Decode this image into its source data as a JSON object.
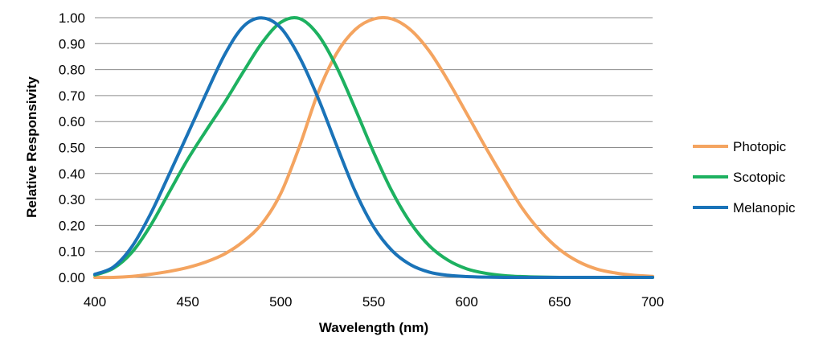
{
  "chart_data": {
    "type": "line",
    "title": "",
    "xlabel": "Wavelength (nm)",
    "ylabel": "Relative Responsivity",
    "xlim": [
      400,
      700
    ],
    "ylim": [
      0,
      1
    ],
    "x_ticks": [
      "400",
      "450",
      "500",
      "550",
      "600",
      "650",
      "700"
    ],
    "y_ticks": [
      "0.00",
      "0.10",
      "0.20",
      "0.30",
      "0.40",
      "0.50",
      "0.60",
      "0.70",
      "0.80",
      "0.90",
      "1.00"
    ],
    "grid": "horizontal",
    "legend_position": "right",
    "x": [
      400,
      410,
      420,
      430,
      440,
      450,
      460,
      470,
      480,
      490,
      500,
      510,
      520,
      530,
      540,
      550,
      560,
      570,
      580,
      590,
      600,
      610,
      620,
      630,
      640,
      650,
      660,
      670,
      680,
      690,
      700
    ],
    "series": [
      {
        "name": "Photopic",
        "color": "#F4A460",
        "values": [
          0.0,
          0.0,
          0.004,
          0.012,
          0.023,
          0.038,
          0.06,
          0.091,
          0.139,
          0.208,
          0.323,
          0.503,
          0.71,
          0.862,
          0.954,
          0.995,
          0.995,
          0.952,
          0.87,
          0.757,
          0.631,
          0.503,
          0.381,
          0.265,
          0.175,
          0.107,
          0.061,
          0.032,
          0.017,
          0.008,
          0.004
        ]
      },
      {
        "name": "Scotopic",
        "color": "#1DB160",
        "values": [
          0.009,
          0.035,
          0.097,
          0.2,
          0.328,
          0.455,
          0.567,
          0.676,
          0.793,
          0.904,
          0.982,
          0.997,
          0.935,
          0.811,
          0.65,
          0.481,
          0.329,
          0.208,
          0.121,
          0.066,
          0.033,
          0.016,
          0.007,
          0.003,
          0.001,
          0.0,
          0.0,
          0.0,
          0.0,
          0.0,
          0.0
        ]
      },
      {
        "name": "Melanopic",
        "color": "#1A73B8",
        "values": [
          0.012,
          0.04,
          0.119,
          0.245,
          0.397,
          0.553,
          0.71,
          0.86,
          0.967,
          0.999,
          0.961,
          0.849,
          0.692,
          0.509,
          0.332,
          0.194,
          0.102,
          0.048,
          0.02,
          0.008,
          0.003,
          0.001,
          0.0,
          0.0,
          0.0,
          0.0,
          0.0,
          0.0,
          0.0,
          0.0,
          0.0
        ]
      }
    ]
  }
}
